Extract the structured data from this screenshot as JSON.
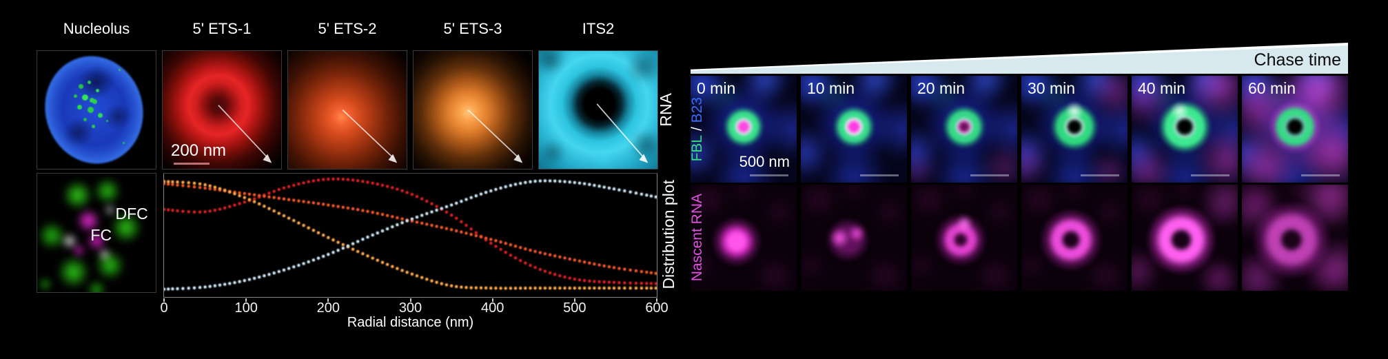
{
  "page": {
    "background": "#000000"
  },
  "figure": {
    "left": {
      "panel_labels": [
        "Nucleolus",
        "5' ETS-1",
        "5' ETS-2",
        "5' ETS-3",
        "ITS2"
      ],
      "row1_side_label": "RNA",
      "scale_bar": "200 nm",
      "inset_labels": {
        "dfc": "DFC",
        "fc": "FC"
      }
    },
    "right": {
      "chase_label": "Chase time",
      "wedge_color": "#d7e9ee",
      "times": [
        "0 min",
        "10 min",
        "20 min",
        "30 min",
        "40 min",
        "60 min"
      ],
      "row1_label_parts": [
        {
          "text": "FBL",
          "color": "#35e07d"
        },
        {
          "text": " / ",
          "color": "#ffffff"
        },
        {
          "text": "B23",
          "color": "#3a6cf5"
        }
      ],
      "row2_label": {
        "text": "Nascent RNA",
        "color": "#e052e0"
      },
      "scale_bar": "500 nm"
    }
  },
  "icons": {
    "pointer_arrow": "thin diagonal arrow from signal center to bottom-right corner of panel"
  },
  "chart_data": {
    "type": "line",
    "style": "dotted",
    "title": "",
    "xlabel": "Radial distance (nm)",
    "ylabel": "Distribution plot",
    "xlim": [
      0,
      600
    ],
    "ylim": [
      0,
      1.05
    ],
    "x_ticks": [
      0,
      100,
      200,
      300,
      400,
      500,
      600
    ],
    "y_ticks": [],
    "grid": false,
    "legend_position": "none",
    "x": [
      0,
      50,
      100,
      150,
      200,
      250,
      300,
      350,
      400,
      450,
      500,
      550,
      600
    ],
    "series": [
      {
        "name": "5' ETS-1",
        "color": "#d01f1f",
        "values": [
          0.73,
          0.71,
          0.8,
          0.93,
          1.0,
          0.97,
          0.87,
          0.68,
          0.42,
          0.22,
          0.11,
          0.08,
          0.07
        ]
      },
      {
        "name": "5' ETS-2",
        "color": "#e65427",
        "values": [
          0.96,
          0.92,
          0.87,
          0.82,
          0.77,
          0.71,
          0.63,
          0.55,
          0.46,
          0.36,
          0.28,
          0.21,
          0.16
        ]
      },
      {
        "name": "5' ETS-3",
        "color": "#f2a24b",
        "values": [
          0.98,
          0.95,
          0.83,
          0.66,
          0.48,
          0.31,
          0.16,
          0.05,
          0.03,
          0.03,
          0.03,
          0.03,
          0.03
        ]
      },
      {
        "name": "ITS2",
        "color": "#c6dcea",
        "values": [
          0.02,
          0.04,
          0.1,
          0.2,
          0.33,
          0.49,
          0.64,
          0.77,
          0.9,
          0.98,
          0.97,
          0.91,
          0.84
        ]
      }
    ]
  }
}
